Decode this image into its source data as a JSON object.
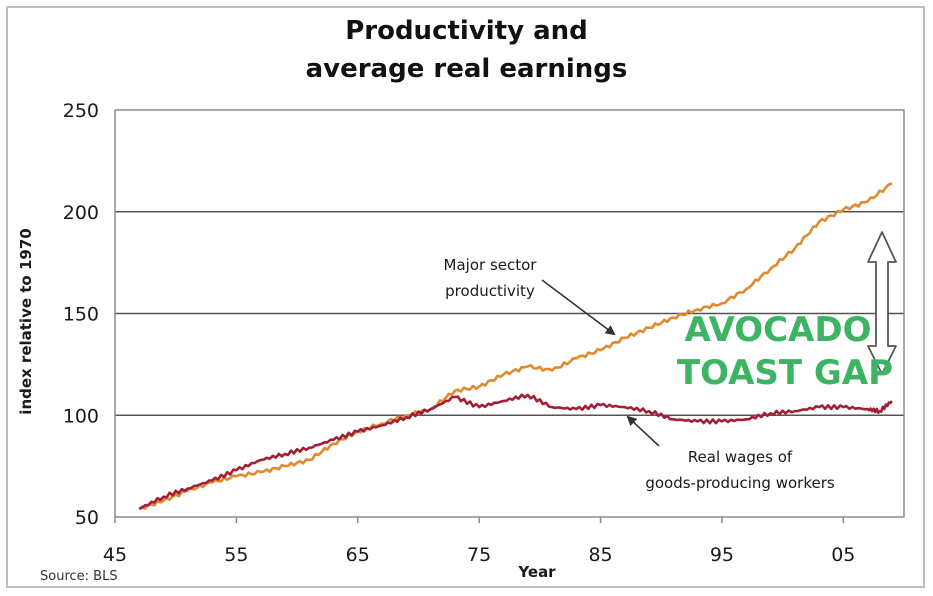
{
  "chart_data": {
    "type": "line",
    "title_line1": "Productivity and",
    "title_line2": "average real earnings",
    "xlabel": "Year",
    "ylabel": "index relative to 1970",
    "xlim": [
      1945,
      2010
    ],
    "ylim": [
      50,
      250
    ],
    "x_ticks": [
      {
        "value": 1945,
        "label": "45"
      },
      {
        "value": 1955,
        "label": "55"
      },
      {
        "value": 1965,
        "label": "65"
      },
      {
        "value": 1975,
        "label": "75"
      },
      {
        "value": 1985,
        "label": "85"
      },
      {
        "value": 1995,
        "label": "95"
      },
      {
        "value": 2005,
        "label": "05"
      }
    ],
    "y_ticks": [
      50,
      100,
      150,
      200,
      250
    ],
    "gridlines": [
      100,
      150,
      200
    ],
    "series": [
      {
        "name": "Major sector productivity",
        "color": "#e08a2e",
        "x": [
          1947,
          1949,
          1951,
          1953,
          1955,
          1957,
          1959,
          1961,
          1963,
          1965,
          1967,
          1969,
          1971,
          1973,
          1975,
          1977,
          1979,
          1981,
          1983,
          1985,
          1987,
          1989,
          1991,
          1993,
          1995,
          1997,
          1999,
          2001,
          2003,
          2005,
          2007,
          2009
        ],
        "y": [
          54,
          58,
          63,
          67,
          70,
          72,
          75,
          78,
          86,
          92,
          96,
          100,
          103,
          112,
          114,
          120,
          124,
          122,
          128,
          132,
          138,
          143,
          148,
          152,
          155,
          162,
          172,
          182,
          195,
          201,
          205,
          214
        ]
      },
      {
        "name": "Real wages of goods-producing workers",
        "color": "#a31f35",
        "x": [
          1947,
          1949,
          1951,
          1953,
          1955,
          1957,
          1959,
          1961,
          1963,
          1965,
          1967,
          1969,
          1971,
          1973,
          1975,
          1977,
          1979,
          1981,
          1983,
          1985,
          1987,
          1989,
          1991,
          1993,
          1995,
          1997,
          1999,
          2001,
          2003,
          2005,
          2007,
          2008,
          2009
        ],
        "y": [
          54,
          60,
          64,
          68,
          73,
          78,
          81,
          84,
          88,
          92,
          95,
          99,
          103,
          109,
          104,
          107,
          110,
          104,
          103,
          105,
          104,
          102,
          98,
          97,
          97,
          98,
          101,
          102,
          104,
          104,
          103,
          102,
          107
        ]
      }
    ],
    "annotations": {
      "productivity_label": [
        "Major sector",
        "productivity"
      ],
      "wages_label": [
        "Real wages of",
        "goods-producing workers"
      ],
      "gap_label": [
        "AVOCADO",
        "TOAST GAP"
      ],
      "source": "Source: BLS"
    },
    "colors": {
      "gap_text": "#3cb464",
      "gridline": "#555555",
      "arrow": "#333333"
    }
  }
}
